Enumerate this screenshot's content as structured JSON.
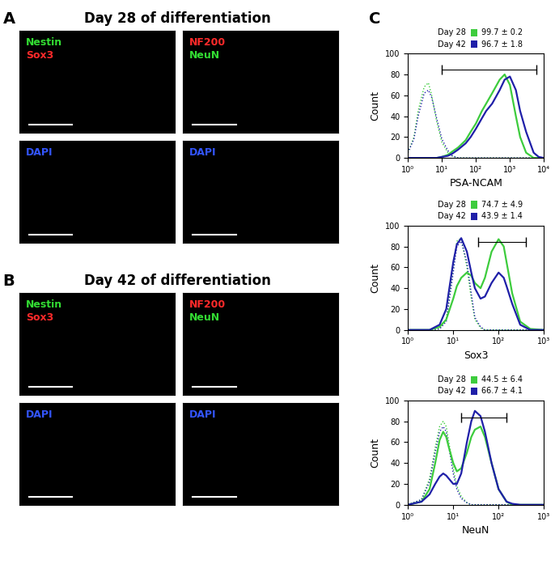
{
  "image_panels": [
    {
      "label": "A",
      "title": "Day 28 of differentiation",
      "tiles": [
        {
          "channels": [
            {
              "text": "Nestin",
              "color": "#33dd33"
            },
            {
              "text": "Sox3",
              "color": "#ff2a2a"
            }
          ]
        },
        {
          "channels": [
            {
              "text": "NF200",
              "color": "#ff2a2a"
            },
            {
              "text": "NeuN",
              "color": "#33dd33"
            }
          ]
        },
        {
          "channels": [
            {
              "text": "DAPI",
              "color": "#3355ff"
            }
          ]
        },
        {
          "channels": [
            {
              "text": "DAPI",
              "color": "#3355ff"
            }
          ]
        }
      ]
    },
    {
      "label": "B",
      "title": "Day 42 of differentiation",
      "tiles": [
        {
          "channels": [
            {
              "text": "Nestin",
              "color": "#33dd33"
            },
            {
              "text": "Sox3",
              "color": "#ff2a2a"
            }
          ]
        },
        {
          "channels": [
            {
              "text": "NF200",
              "color": "#ff2a2a"
            },
            {
              "text": "NeuN",
              "color": "#33dd33"
            }
          ]
        },
        {
          "channels": [
            {
              "text": "DAPI",
              "color": "#3355ff"
            }
          ]
        },
        {
          "channels": [
            {
              "text": "DAPI",
              "color": "#3355ff"
            }
          ]
        }
      ]
    }
  ],
  "panel_label": "C",
  "chart_data": [
    {
      "type": "line",
      "log": "x",
      "x_label": "PSA-NCAM",
      "y_label": "Count",
      "x": [
        1,
        1.5,
        2,
        3,
        4,
        5,
        7,
        10,
        15,
        20,
        30,
        50,
        70,
        100,
        150,
        200,
        300,
        500,
        700,
        1000,
        1500,
        2000,
        3000,
        5000,
        7000,
        10000
      ],
      "xlim": [
        1,
        10000
      ],
      "xticks": [
        {
          "value": 1,
          "label": "10⁰"
        },
        {
          "value": 10,
          "label": "10¹"
        },
        {
          "value": 100,
          "label": "10²"
        },
        {
          "value": 1000,
          "label": "10³"
        },
        {
          "value": 10000,
          "label": "10⁴"
        }
      ],
      "ylim": [
        0,
        100
      ],
      "yticks": [
        0,
        20,
        40,
        60,
        80,
        100
      ],
      "gate": {
        "x": [
          10,
          6000
        ],
        "y": 85
      },
      "series": [
        {
          "color": "#3dcc3d",
          "line_style": "dotted",
          "values": [
            5,
            20,
            45,
            68,
            72,
            60,
            35,
            15,
            5,
            2,
            0,
            0,
            0,
            0,
            0,
            0,
            0,
            0,
            0,
            0,
            0,
            0,
            0,
            0,
            0,
            0
          ]
        },
        {
          "color": "#1f1fa8",
          "line_style": "dotted",
          "values": [
            5,
            18,
            40,
            62,
            65,
            58,
            38,
            18,
            7,
            2,
            0,
            0,
            0,
            0,
            0,
            0,
            0,
            0,
            0,
            0,
            0,
            0,
            0,
            0,
            0,
            0
          ]
        },
        {
          "name": "Day 28",
          "stat": "99.7 ± 0.2",
          "color": "#3dcc3d",
          "line_style": "solid",
          "values": [
            0,
            0,
            0,
            0,
            0,
            0,
            0,
            1,
            3,
            6,
            10,
            17,
            25,
            33,
            45,
            52,
            62,
            75,
            80,
            70,
            40,
            20,
            5,
            0,
            0,
            0
          ]
        },
        {
          "name": "Day 42",
          "stat": "96.7 ± 1.8",
          "color": "#1f1fa8",
          "line_style": "solid",
          "values": [
            0,
            0,
            0,
            0,
            0,
            0,
            0,
            1,
            2,
            4,
            8,
            14,
            20,
            28,
            38,
            45,
            52,
            65,
            75,
            78,
            65,
            45,
            25,
            5,
            1,
            0
          ]
        }
      ]
    },
    {
      "type": "line",
      "log": "x",
      "x_label": "Sox3",
      "y_label": "Count",
      "x": [
        1,
        2,
        3,
        5,
        7,
        10,
        12,
        15,
        20,
        25,
        30,
        40,
        50,
        70,
        100,
        130,
        150,
        200,
        300,
        500,
        1000
      ],
      "xlim": [
        1,
        1000
      ],
      "xticks": [
        {
          "value": 1,
          "label": "10⁰"
        },
        {
          "value": 10,
          "label": "10¹"
        },
        {
          "value": 100,
          "label": "10²"
        },
        {
          "value": 1000,
          "label": "10³"
        }
      ],
      "ylim": [
        0,
        100
      ],
      "yticks": [
        0,
        20,
        40,
        60,
        80,
        100
      ],
      "gate": {
        "x": [
          35,
          400
        ],
        "y": 84
      },
      "series": [
        {
          "color": "#3dcc3d",
          "line_style": "dotted",
          "values": [
            0,
            0,
            0,
            1,
            10,
            60,
            85,
            88,
            60,
            30,
            10,
            2,
            0,
            0,
            0,
            0,
            0,
            0,
            0,
            0,
            0
          ]
        },
        {
          "color": "#1f1fa8",
          "line_style": "dotted",
          "values": [
            0,
            0,
            0,
            1,
            8,
            55,
            80,
            85,
            65,
            35,
            12,
            3,
            0,
            0,
            0,
            0,
            0,
            0,
            0,
            0,
            0
          ]
        },
        {
          "name": "Day 28",
          "stat": "74.7 ± 4.9",
          "color": "#3dcc3d",
          "line_style": "solid",
          "values": [
            0,
            0,
            0,
            3,
            10,
            30,
            42,
            50,
            55,
            52,
            45,
            40,
            50,
            75,
            87,
            80,
            65,
            35,
            8,
            1,
            0
          ]
        },
        {
          "name": "Day 42",
          "stat": "43.9 ± 1.4",
          "color": "#1f1fa8",
          "line_style": "solid",
          "values": [
            0,
            0,
            0,
            5,
            20,
            65,
            82,
            88,
            75,
            55,
            40,
            30,
            32,
            45,
            55,
            50,
            42,
            25,
            5,
            0,
            0
          ]
        }
      ]
    },
    {
      "type": "line",
      "log": "x",
      "x_label": "NeuN",
      "y_label": "Count",
      "x": [
        1,
        2,
        3,
        4,
        5,
        6,
        7,
        8,
        10,
        12,
        15,
        20,
        25,
        30,
        40,
        50,
        70,
        100,
        150,
        200,
        300,
        1000
      ],
      "xlim": [
        1,
        1000
      ],
      "xticks": [
        {
          "value": 1,
          "label": "10⁰"
        },
        {
          "value": 10,
          "label": "10¹"
        },
        {
          "value": 100,
          "label": "10²"
        },
        {
          "value": 1000,
          "label": "10³"
        }
      ],
      "ylim": [
        0,
        100
      ],
      "yticks": [
        0,
        20,
        40,
        60,
        80,
        100
      ],
      "gate": {
        "x": [
          15,
          150
        ],
        "y": 84
      },
      "series": [
        {
          "color": "#3dcc3d",
          "line_style": "dotted",
          "values": [
            0,
            5,
            25,
            55,
            75,
            80,
            75,
            60,
            35,
            18,
            8,
            2,
            0,
            0,
            0,
            0,
            0,
            0,
            0,
            0,
            0,
            0
          ]
        },
        {
          "color": "#1f1fa8",
          "line_style": "dotted",
          "values": [
            0,
            5,
            22,
            50,
            70,
            75,
            70,
            55,
            30,
            15,
            6,
            2,
            0,
            0,
            0,
            0,
            0,
            0,
            0,
            0,
            0,
            0
          ]
        },
        {
          "name": "Day 28",
          "stat": "44.5 ± 6.4",
          "color": "#3dcc3d",
          "line_style": "solid",
          "values": [
            0,
            3,
            15,
            40,
            62,
            70,
            65,
            55,
            40,
            32,
            35,
            50,
            65,
            72,
            75,
            65,
            40,
            15,
            3,
            0,
            0,
            0
          ]
        },
        {
          "name": "Day 42",
          "stat": "66.7 ± 4.1",
          "color": "#1f1fa8",
          "line_style": "solid",
          "values": [
            0,
            3,
            10,
            20,
            27,
            30,
            28,
            25,
            20,
            20,
            30,
            60,
            80,
            90,
            85,
            70,
            40,
            15,
            3,
            1,
            0,
            0
          ]
        }
      ]
    }
  ]
}
